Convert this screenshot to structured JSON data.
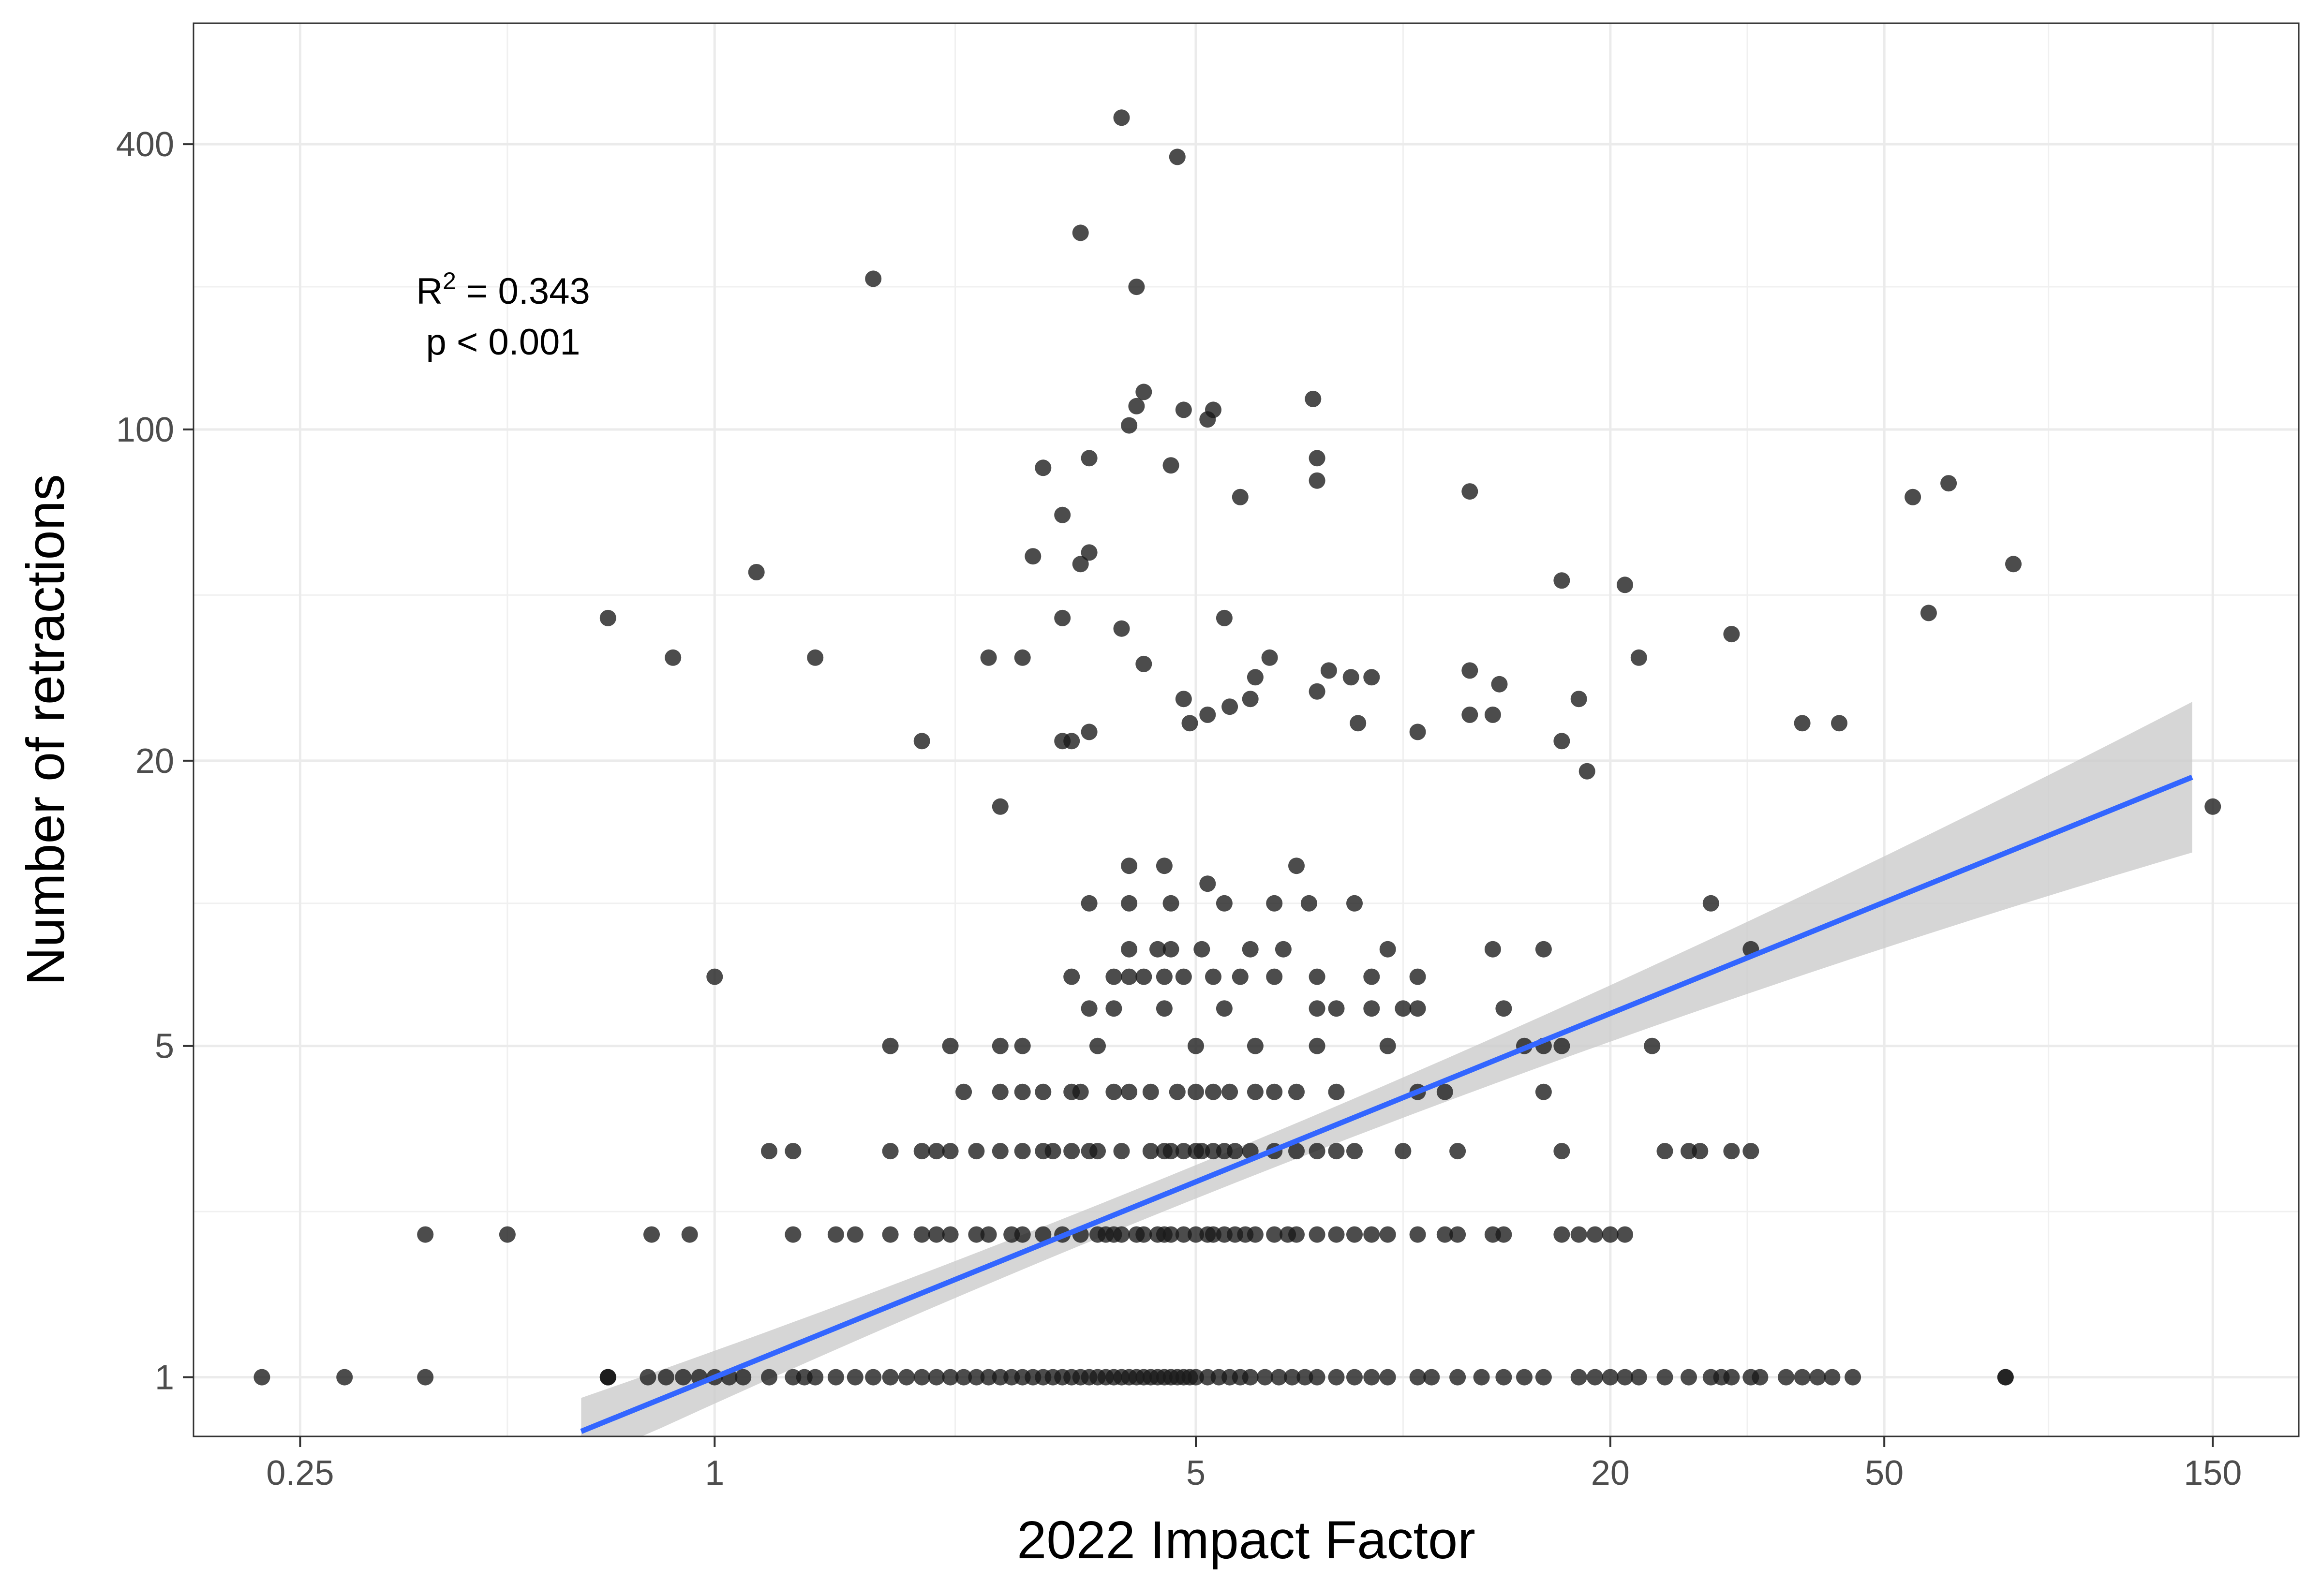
{
  "chart_data": {
    "type": "scatter",
    "title": "",
    "xlabel": "2022 Impact Factor",
    "ylabel": "Number of retractions",
    "x_scale": "log",
    "y_scale": "log",
    "xlim": [
      0.175,
      200
    ],
    "ylim": [
      0.75,
      720
    ],
    "x_ticks": [
      0.25,
      1,
      5,
      20,
      50,
      150
    ],
    "x_tick_labels": [
      "0.25",
      "1",
      "5",
      "20",
      "50",
      "150"
    ],
    "y_ticks": [
      1,
      5,
      20,
      100,
      400
    ],
    "y_tick_labels": [
      "1",
      "5",
      "20",
      "100",
      "400"
    ],
    "grid": true,
    "annotation": {
      "r2_label": "R",
      "r2_sup": "2",
      "r2_value": " = 0.343",
      "p_text": "p < 0.001"
    },
    "fit": {
      "type": "linear-log-log",
      "slope": 0.59,
      "intercept_at_x1": 1.0,
      "x_range": [
        0.64,
        140
      ],
      "ci_upper_at_max": 28,
      "ci_lower_at_max": 13.5,
      "color": "#3366ff",
      "band_color": "#cccccc"
    },
    "point_color": "#1a1a1a",
    "points": [
      [
        0.22,
        1
      ],
      [
        0.29,
        1
      ],
      [
        0.38,
        1
      ],
      [
        0.38,
        2
      ],
      [
        0.7,
        1
      ],
      [
        0.7,
        1
      ],
      [
        0.8,
        1
      ],
      [
        0.85,
        1
      ],
      [
        0.9,
        1
      ],
      [
        0.95,
        1
      ],
      [
        1.0,
        1
      ],
      [
        1.05,
        1
      ],
      [
        1.1,
        1
      ],
      [
        1.2,
        1
      ],
      [
        1.3,
        1
      ],
      [
        1.35,
        1
      ],
      [
        1.4,
        1
      ],
      [
        1.5,
        1
      ],
      [
        1.6,
        1
      ],
      [
        1.7,
        1
      ],
      [
        1.8,
        1
      ],
      [
        1.9,
        1
      ],
      [
        2.0,
        1
      ],
      [
        2.1,
        1
      ],
      [
        2.2,
        1
      ],
      [
        2.3,
        1
      ],
      [
        2.4,
        1
      ],
      [
        2.5,
        1
      ],
      [
        2.6,
        1
      ],
      [
        2.7,
        1
      ],
      [
        2.8,
        1
      ],
      [
        2.9,
        1
      ],
      [
        3.0,
        1
      ],
      [
        3.1,
        1
      ],
      [
        3.2,
        1
      ],
      [
        3.3,
        1
      ],
      [
        3.4,
        1
      ],
      [
        3.5,
        1
      ],
      [
        3.6,
        1
      ],
      [
        3.7,
        1
      ],
      [
        3.8,
        1
      ],
      [
        3.9,
        1
      ],
      [
        4.0,
        1
      ],
      [
        4.1,
        1
      ],
      [
        4.2,
        1
      ],
      [
        4.3,
        1
      ],
      [
        4.4,
        1
      ],
      [
        4.5,
        1
      ],
      [
        4.6,
        1
      ],
      [
        4.7,
        1
      ],
      [
        4.8,
        1
      ],
      [
        4.9,
        1
      ],
      [
        5.0,
        1
      ],
      [
        5.2,
        1
      ],
      [
        5.4,
        1
      ],
      [
        5.6,
        1
      ],
      [
        5.8,
        1
      ],
      [
        6.0,
        1
      ],
      [
        6.3,
        1
      ],
      [
        6.6,
        1
      ],
      [
        6.9,
        1
      ],
      [
        7.2,
        1
      ],
      [
        7.5,
        1
      ],
      [
        8.0,
        1
      ],
      [
        8.5,
        1
      ],
      [
        9.0,
        1
      ],
      [
        9.5,
        1
      ],
      [
        10.5,
        1
      ],
      [
        11,
        1
      ],
      [
        12,
        1
      ],
      [
        13,
        1
      ],
      [
        14,
        1
      ],
      [
        15,
        1
      ],
      [
        16,
        1
      ],
      [
        18,
        1
      ],
      [
        19,
        1
      ],
      [
        20,
        1
      ],
      [
        21,
        1
      ],
      [
        22,
        1
      ],
      [
        24,
        1
      ],
      [
        26,
        1
      ],
      [
        28,
        1
      ],
      [
        29,
        1
      ],
      [
        30,
        1
      ],
      [
        32,
        1
      ],
      [
        33,
        1
      ],
      [
        36,
        1
      ],
      [
        38,
        1
      ],
      [
        40,
        1
      ],
      [
        42,
        1
      ],
      [
        45,
        1
      ],
      [
        75,
        1
      ],
      [
        75,
        1
      ],
      [
        0.7,
        1
      ],
      [
        0.81,
        2
      ],
      [
        0.92,
        2
      ],
      [
        0.5,
        2
      ],
      [
        1.3,
        2
      ],
      [
        1.5,
        2
      ],
      [
        1.6,
        2
      ],
      [
        1.8,
        2
      ],
      [
        2.0,
        2
      ],
      [
        2.1,
        2
      ],
      [
        2.2,
        2
      ],
      [
        2.4,
        2
      ],
      [
        2.5,
        2
      ],
      [
        2.7,
        2
      ],
      [
        2.8,
        2
      ],
      [
        3.0,
        2
      ],
      [
        3.2,
        2
      ],
      [
        3.4,
        2
      ],
      [
        3.6,
        2
      ],
      [
        3.7,
        2
      ],
      [
        3.8,
        2
      ],
      [
        3.9,
        2
      ],
      [
        4.1,
        2
      ],
      [
        4.2,
        2
      ],
      [
        4.4,
        2
      ],
      [
        4.5,
        2
      ],
      [
        4.6,
        2
      ],
      [
        4.8,
        2
      ],
      [
        5.0,
        2
      ],
      [
        5.2,
        2
      ],
      [
        5.3,
        2
      ],
      [
        5.5,
        2
      ],
      [
        5.7,
        2
      ],
      [
        5.9,
        2
      ],
      [
        6.1,
        2
      ],
      [
        6.5,
        2
      ],
      [
        6.8,
        2
      ],
      [
        7.0,
        2
      ],
      [
        7.5,
        2
      ],
      [
        8.0,
        2
      ],
      [
        8.5,
        2
      ],
      [
        9.0,
        2
      ],
      [
        9.5,
        2
      ],
      [
        10.5,
        2
      ],
      [
        11.5,
        2
      ],
      [
        12,
        2
      ],
      [
        13.5,
        2
      ],
      [
        14,
        2
      ],
      [
        17,
        2
      ],
      [
        18,
        2
      ],
      [
        19,
        2
      ],
      [
        20,
        2
      ],
      [
        21,
        2
      ],
      [
        1.2,
        3
      ],
      [
        1.3,
        3
      ],
      [
        1.8,
        3
      ],
      [
        2.0,
        3
      ],
      [
        2.1,
        3
      ],
      [
        2.2,
        3
      ],
      [
        2.4,
        3
      ],
      [
        2.6,
        3
      ],
      [
        2.8,
        3
      ],
      [
        3.0,
        3
      ],
      [
        3.1,
        3
      ],
      [
        3.3,
        3
      ],
      [
        3.5,
        3
      ],
      [
        3.6,
        3
      ],
      [
        3.9,
        3
      ],
      [
        4.3,
        3
      ],
      [
        4.5,
        3
      ],
      [
        4.6,
        3
      ],
      [
        4.8,
        3
      ],
      [
        5.0,
        3
      ],
      [
        5.1,
        3
      ],
      [
        5.3,
        3
      ],
      [
        5.5,
        3
      ],
      [
        5.7,
        3
      ],
      [
        6.0,
        3
      ],
      [
        6.5,
        3
      ],
      [
        7.0,
        3
      ],
      [
        7.5,
        3
      ],
      [
        8.0,
        3
      ],
      [
        8.5,
        3
      ],
      [
        10,
        3
      ],
      [
        12,
        3
      ],
      [
        17,
        3
      ],
      [
        24,
        3
      ],
      [
        26,
        3
      ],
      [
        27,
        3
      ],
      [
        30,
        3
      ],
      [
        32,
        3
      ],
      [
        2.3,
        4
      ],
      [
        2.6,
        4
      ],
      [
        2.8,
        4
      ],
      [
        3.0,
        4
      ],
      [
        3.3,
        4
      ],
      [
        3.4,
        4
      ],
      [
        3.8,
        4
      ],
      [
        4.0,
        4
      ],
      [
        4.3,
        4
      ],
      [
        4.7,
        4
      ],
      [
        5.0,
        4
      ],
      [
        5.3,
        4
      ],
      [
        5.6,
        4
      ],
      [
        6.1,
        4
      ],
      [
        6.5,
        4
      ],
      [
        7.0,
        4
      ],
      [
        8.0,
        4
      ],
      [
        10.5,
        4
      ],
      [
        11.5,
        4
      ],
      [
        16,
        4
      ],
      [
        1.8,
        5
      ],
      [
        2.2,
        5
      ],
      [
        2.6,
        5
      ],
      [
        2.8,
        5
      ],
      [
        3.6,
        5
      ],
      [
        5.0,
        5
      ],
      [
        6.1,
        5
      ],
      [
        7.5,
        5
      ],
      [
        9.5,
        5
      ],
      [
        15,
        5
      ],
      [
        16,
        5
      ],
      [
        17,
        5
      ],
      [
        23,
        5
      ],
      [
        3.5,
        6
      ],
      [
        3.8,
        6
      ],
      [
        4.5,
        6
      ],
      [
        5.5,
        6
      ],
      [
        7.5,
        6
      ],
      [
        8.0,
        6
      ],
      [
        9.0,
        6
      ],
      [
        10,
        6
      ],
      [
        10.5,
        6
      ],
      [
        14,
        6
      ],
      [
        1.0,
        7
      ],
      [
        3.3,
        7
      ],
      [
        3.8,
        7
      ],
      [
        4.0,
        7
      ],
      [
        4.2,
        7
      ],
      [
        4.5,
        7
      ],
      [
        4.8,
        7
      ],
      [
        5.3,
        7
      ],
      [
        5.8,
        7
      ],
      [
        6.5,
        7
      ],
      [
        7.5,
        7
      ],
      [
        9.0,
        7
      ],
      [
        10.5,
        7
      ],
      [
        4.0,
        8
      ],
      [
        4.4,
        8
      ],
      [
        4.6,
        8
      ],
      [
        5.1,
        8
      ],
      [
        6.0,
        8
      ],
      [
        6.7,
        8
      ],
      [
        9.5,
        8
      ],
      [
        13.5,
        8
      ],
      [
        16,
        8
      ],
      [
        32,
        8
      ],
      [
        3.5,
        10
      ],
      [
        4.0,
        10
      ],
      [
        4.6,
        10
      ],
      [
        5.5,
        10
      ],
      [
        6.5,
        10
      ],
      [
        7.3,
        10
      ],
      [
        8.5,
        10
      ],
      [
        28,
        10
      ],
      [
        4.0,
        12
      ],
      [
        4.5,
        12
      ],
      [
        5.2,
        11
      ],
      [
        7.0,
        12
      ],
      [
        2.6,
        16
      ],
      [
        3.2,
        22
      ],
      [
        3.5,
        23
      ],
      [
        3.3,
        22
      ],
      [
        2.0,
        22
      ],
      [
        4.9,
        24
      ],
      [
        5.6,
        26
      ],
      [
        6.0,
        27
      ],
      [
        7.5,
        28
      ],
      [
        8.6,
        24
      ],
      [
        9.0,
        30
      ],
      [
        10.5,
        23
      ],
      [
        12.5,
        31
      ],
      [
        13.8,
        29
      ],
      [
        17,
        22
      ],
      [
        22,
        33
      ],
      [
        30,
        37
      ],
      [
        38,
        24
      ],
      [
        43,
        24
      ],
      [
        0.7,
        40
      ],
      [
        0.87,
        33
      ],
      [
        1.15,
        50
      ],
      [
        1.4,
        33
      ],
      [
        2.5,
        33
      ],
      [
        2.8,
        33
      ],
      [
        3.2,
        40
      ],
      [
        3.4,
        52
      ],
      [
        3.9,
        38
      ],
      [
        4.2,
        32
      ],
      [
        4.8,
        27
      ],
      [
        5.2,
        25
      ],
      [
        5.5,
        40
      ],
      [
        6.1,
        30
      ],
      [
        6.4,
        33
      ],
      [
        7.8,
        31
      ],
      [
        8.4,
        30
      ],
      [
        12.5,
        25
      ],
      [
        13.5,
        25
      ],
      [
        18,
        27
      ],
      [
        18.5,
        19
      ],
      [
        2.9,
        54
      ],
      [
        3.2,
        66
      ],
      [
        3.5,
        55
      ],
      [
        5.8,
        72
      ],
      [
        7.5,
        87
      ],
      [
        12.5,
        74
      ],
      [
        17,
        48
      ],
      [
        21,
        47
      ],
      [
        58,
        41
      ],
      [
        150,
        16
      ],
      [
        3.0,
        83
      ],
      [
        3.5,
        87
      ],
      [
        4.0,
        102
      ],
      [
        4.1,
        112
      ],
      [
        4.6,
        84
      ],
      [
        4.8,
        110
      ],
      [
        5.2,
        105
      ],
      [
        5.3,
        110
      ],
      [
        7.5,
        78
      ],
      [
        55,
        72
      ],
      [
        62,
        77
      ],
      [
        77,
        52
      ],
      [
        1.7,
        208
      ],
      [
        3.4,
        260
      ],
      [
        4.1,
        200
      ],
      [
        4.2,
        120
      ],
      [
        7.4,
        116
      ],
      [
        3.9,
        455
      ],
      [
        4.7,
        376
      ]
    ]
  }
}
